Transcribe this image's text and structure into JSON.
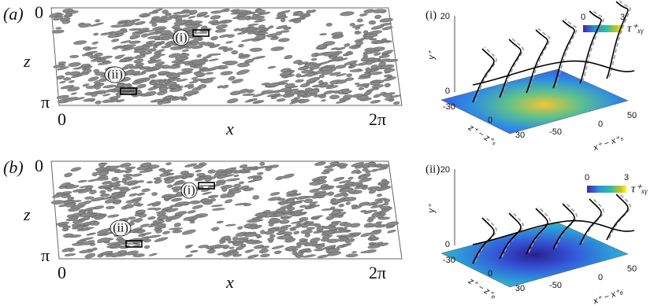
{
  "panels": [
    {
      "label": "(a)",
      "z_top": "0",
      "z_axis": "z",
      "z_bottom": "π",
      "x_left": "0",
      "x_axis": "x",
      "x_right": "2π",
      "regions": [
        "(i)",
        "(ii)"
      ]
    },
    {
      "label": "(b)",
      "z_top": "0",
      "z_axis": "z",
      "z_bottom": "π",
      "x_left": "0",
      "x_axis": "x",
      "x_right": "2π",
      "regions": [
        "(i)",
        "(ii)"
      ]
    }
  ],
  "insets": [
    {
      "label": "(i)",
      "y_ticks": [
        "20",
        "0"
      ],
      "y_axis": "y⁺",
      "z_ticks": [
        "-30",
        "0",
        "30"
      ],
      "z_axis": "z⁺ − z⁺ₛ",
      "x_ticks": [
        "-50",
        "0",
        "50"
      ],
      "x_axis": "x⁺ − x⁺ₛ",
      "colorbar_ticks": [
        "0",
        "3"
      ],
      "colorbar_label": "τ⁺ₓᵧ"
    },
    {
      "label": "(ii)",
      "y_ticks": [
        "20",
        "0"
      ],
      "y_axis": "y⁺",
      "z_ticks": [
        "-30",
        "0",
        "30"
      ],
      "z_axis": "z⁺ − z⁺ₑ",
      "x_ticks": [
        "-50",
        "0",
        "50"
      ],
      "x_axis": "x⁺ − x⁺ₑ",
      "colorbar_ticks": [
        "0",
        "3"
      ],
      "colorbar_label": "τ⁺ₓᵧ"
    }
  ]
}
